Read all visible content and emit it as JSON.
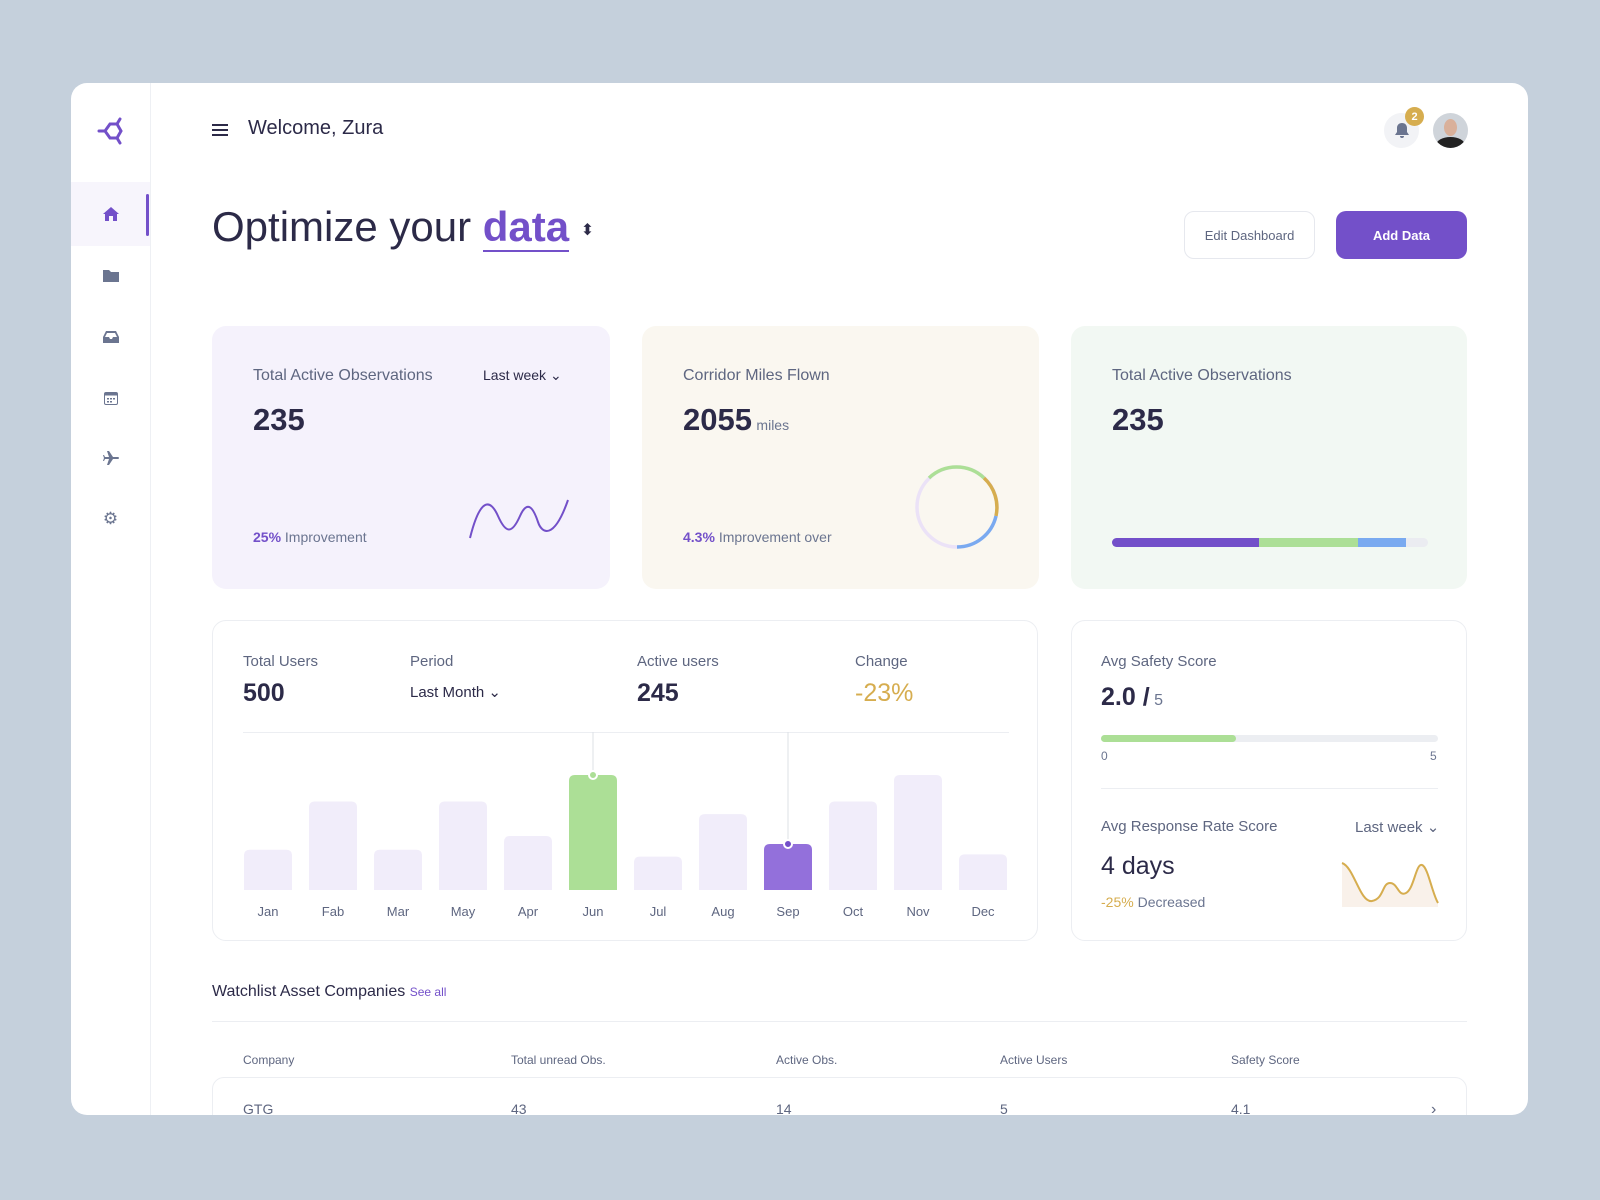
{
  "header": {
    "welcome": "Welcome, Zura",
    "notifications": "2"
  },
  "sidebar": {
    "items": [
      {
        "icon": "home-icon",
        "active": true
      },
      {
        "icon": "folder-icon"
      },
      {
        "icon": "inbox-icon"
      },
      {
        "icon": "calendar-icon"
      },
      {
        "icon": "plane-icon"
      },
      {
        "icon": "gear-icon"
      }
    ]
  },
  "hero": {
    "title": "Optimize your",
    "highlight": "data",
    "edit_label": "Edit Dashboard",
    "add_label": "Add Data"
  },
  "cards": [
    {
      "title": "Total Active Observations",
      "period": "Last week",
      "value": "235",
      "pct": "25%",
      "note": "Improvement"
    },
    {
      "title": "Corridor Miles Flown",
      "value": "2055",
      "unit": "miles",
      "pct": "4.3%",
      "note": "Improvement over"
    },
    {
      "title": "Total Active Observations",
      "value": "235",
      "segments": [
        {
          "pct": 46.5,
          "color": "#7350c9"
        },
        {
          "pct": 31.5,
          "color": "#acdf96"
        },
        {
          "pct": 15,
          "color": "#7aaaf0"
        }
      ]
    }
  ],
  "users": {
    "total_label": "Total Users",
    "total": "500",
    "period_label": "Period",
    "period": "Last Month",
    "active_label": "Active users",
    "active": "245",
    "change_label": "Change",
    "change": "-23%"
  },
  "chart_data": {
    "type": "bar",
    "categories": [
      "Jan",
      "Fab",
      "Mar",
      "May",
      "Apr",
      "Jun",
      "Jul",
      "Aug",
      "Sep",
      "Oct",
      "Nov",
      "Dec"
    ],
    "values": [
      35,
      77,
      35,
      77,
      47,
      100,
      29,
      66,
      40,
      77,
      100,
      31
    ],
    "highlight": {
      "Jun": "#acdf96",
      "Sep": "#9370db"
    },
    "bar_color": "#f1edfa"
  },
  "safety": {
    "label": "Avg Safety Score",
    "value": "2.0 /",
    "max": "5",
    "fraction": 0.4,
    "min_tick": "0",
    "max_tick": "5"
  },
  "response": {
    "label": "Avg Response Rate Score",
    "period": "Last week",
    "value": "4 days",
    "pct": "-25%",
    "note": "Decreased"
  },
  "watchlist": {
    "title": "Watchlist Asset Companies",
    "see_all": "See all",
    "columns": [
      "Company",
      "Total unread Obs.",
      "Active Obs.",
      "Active Users",
      "Safety Score"
    ],
    "rows": [
      [
        "GTG",
        "43",
        "14",
        "5",
        "4.1"
      ]
    ]
  },
  "colors": {
    "accent": "#7350c9",
    "gold": "#d6ad4f",
    "green": "#acdf96",
    "blue": "#7aaaf0"
  }
}
